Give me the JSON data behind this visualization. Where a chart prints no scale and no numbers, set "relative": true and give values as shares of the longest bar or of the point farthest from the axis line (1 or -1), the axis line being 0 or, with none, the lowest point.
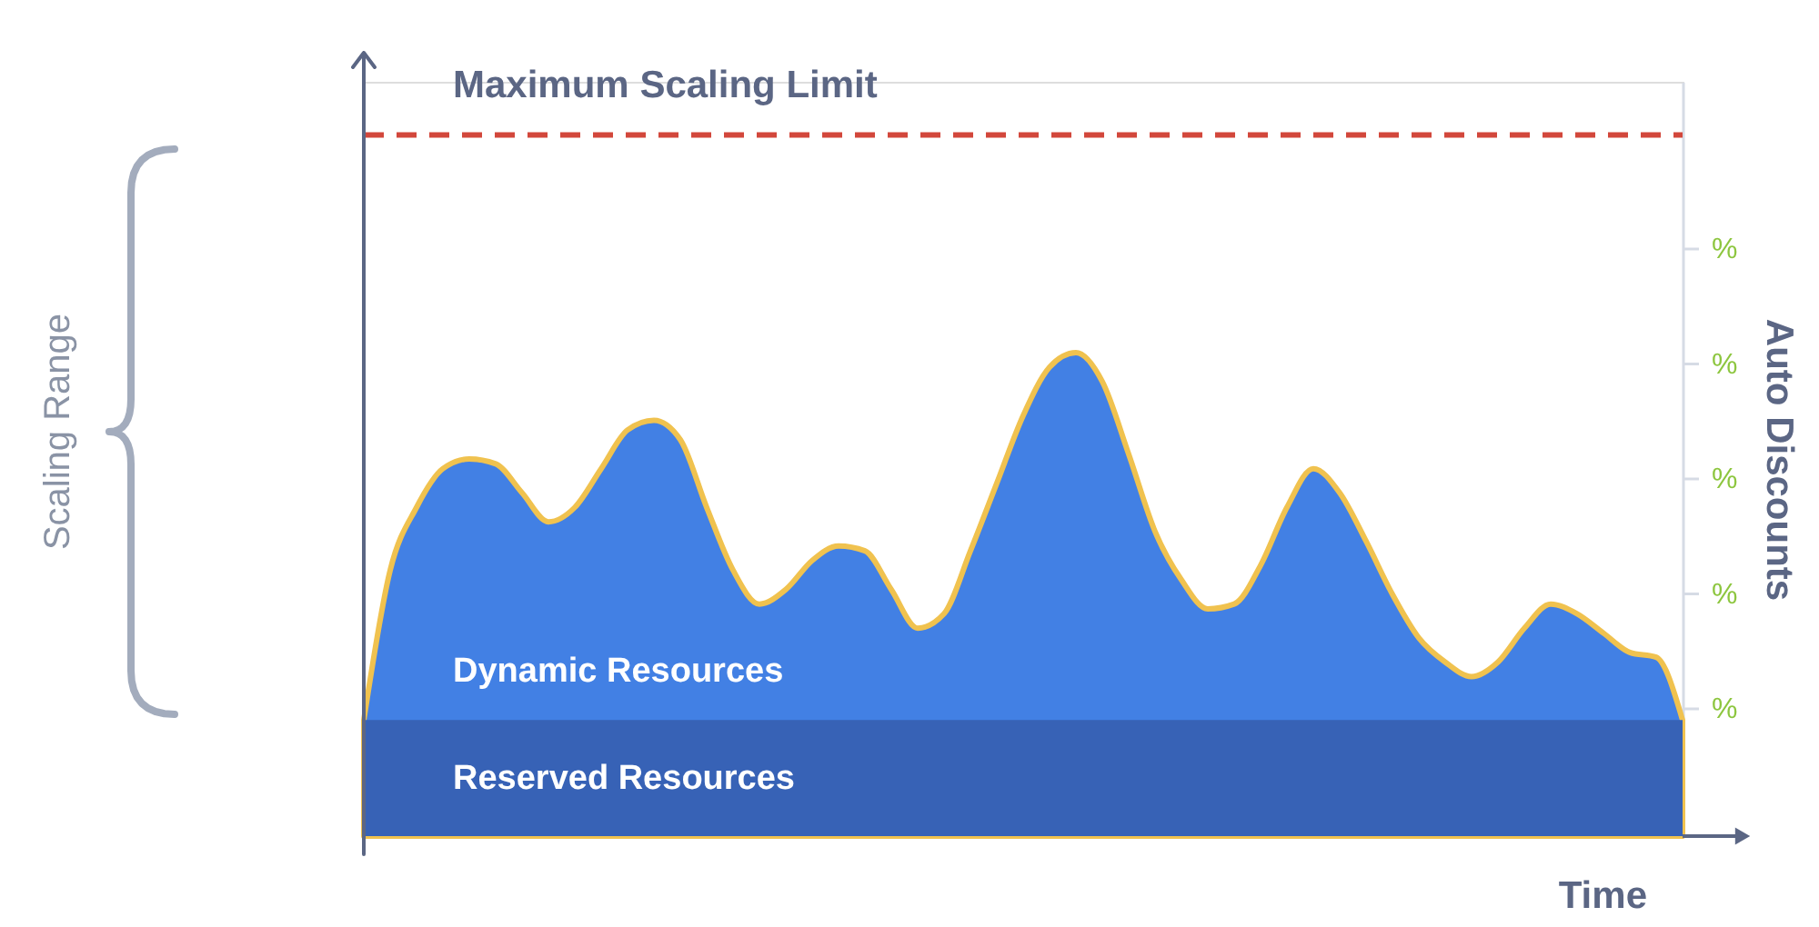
{
  "chart_data": {
    "type": "area",
    "relative": true,
    "categories": [
      null,
      null,
      null,
      null,
      null,
      null,
      null,
      null,
      null,
      null,
      null,
      null,
      null,
      null,
      null,
      null,
      null,
      null,
      null,
      null,
      null,
      null,
      null,
      null,
      null,
      null,
      null,
      null,
      null,
      null,
      null,
      null,
      null,
      null,
      null,
      null,
      null,
      null,
      null,
      null,
      null,
      null,
      null,
      null,
      null,
      null,
      null,
      null,
      null,
      null,
      null
    ],
    "series": [
      {
        "name": "Dynamic Resources",
        "color": "#4280e4",
        "values": [
          0.24,
          0.55,
          0.68,
          0.76,
          0.78,
          0.77,
          0.71,
          0.65,
          0.68,
          0.76,
          0.84,
          0.86,
          0.82,
          0.68,
          0.55,
          0.48,
          0.51,
          0.57,
          0.6,
          0.59,
          0.51,
          0.43,
          0.46,
          0.59,
          0.73,
          0.87,
          0.97,
          1.0,
          0.94,
          0.79,
          0.63,
          0.53,
          0.47,
          0.48,
          0.56,
          0.68,
          0.76,
          0.71,
          0.61,
          0.5,
          0.41,
          0.36,
          0.33,
          0.36,
          0.43,
          0.48,
          0.46,
          0.42,
          0.38,
          0.37,
          0.24
        ]
      },
      {
        "name": "Reserved Resources",
        "color": "#3762b6",
        "values": [
          0.24,
          0.24,
          0.24,
          0.24,
          0.24,
          0.24,
          0.24,
          0.24,
          0.24,
          0.24,
          0.24,
          0.24,
          0.24,
          0.24,
          0.24,
          0.24,
          0.24,
          0.24,
          0.24,
          0.24,
          0.24,
          0.24,
          0.24,
          0.24,
          0.24,
          0.24,
          0.24,
          0.24,
          0.24,
          0.24,
          0.24,
          0.24,
          0.24,
          0.24,
          0.24,
          0.24,
          0.24,
          0.24,
          0.24,
          0.24,
          0.24,
          0.24,
          0.24,
          0.24,
          0.24,
          0.24,
          0.24,
          0.24,
          0.24,
          0.24,
          0.24
        ]
      }
    ],
    "xlabel": "Time",
    "y2label": "Auto Discounts",
    "ref_lines": [
      {
        "axis": "y",
        "value": 1.45,
        "label": "Maximum Scaling Limit",
        "color": "#d2473b",
        "line_style": "dashed"
      }
    ],
    "annotations": [
      "Scaling Range",
      "%",
      "%",
      "%",
      "%",
      "%"
    ]
  }
}
